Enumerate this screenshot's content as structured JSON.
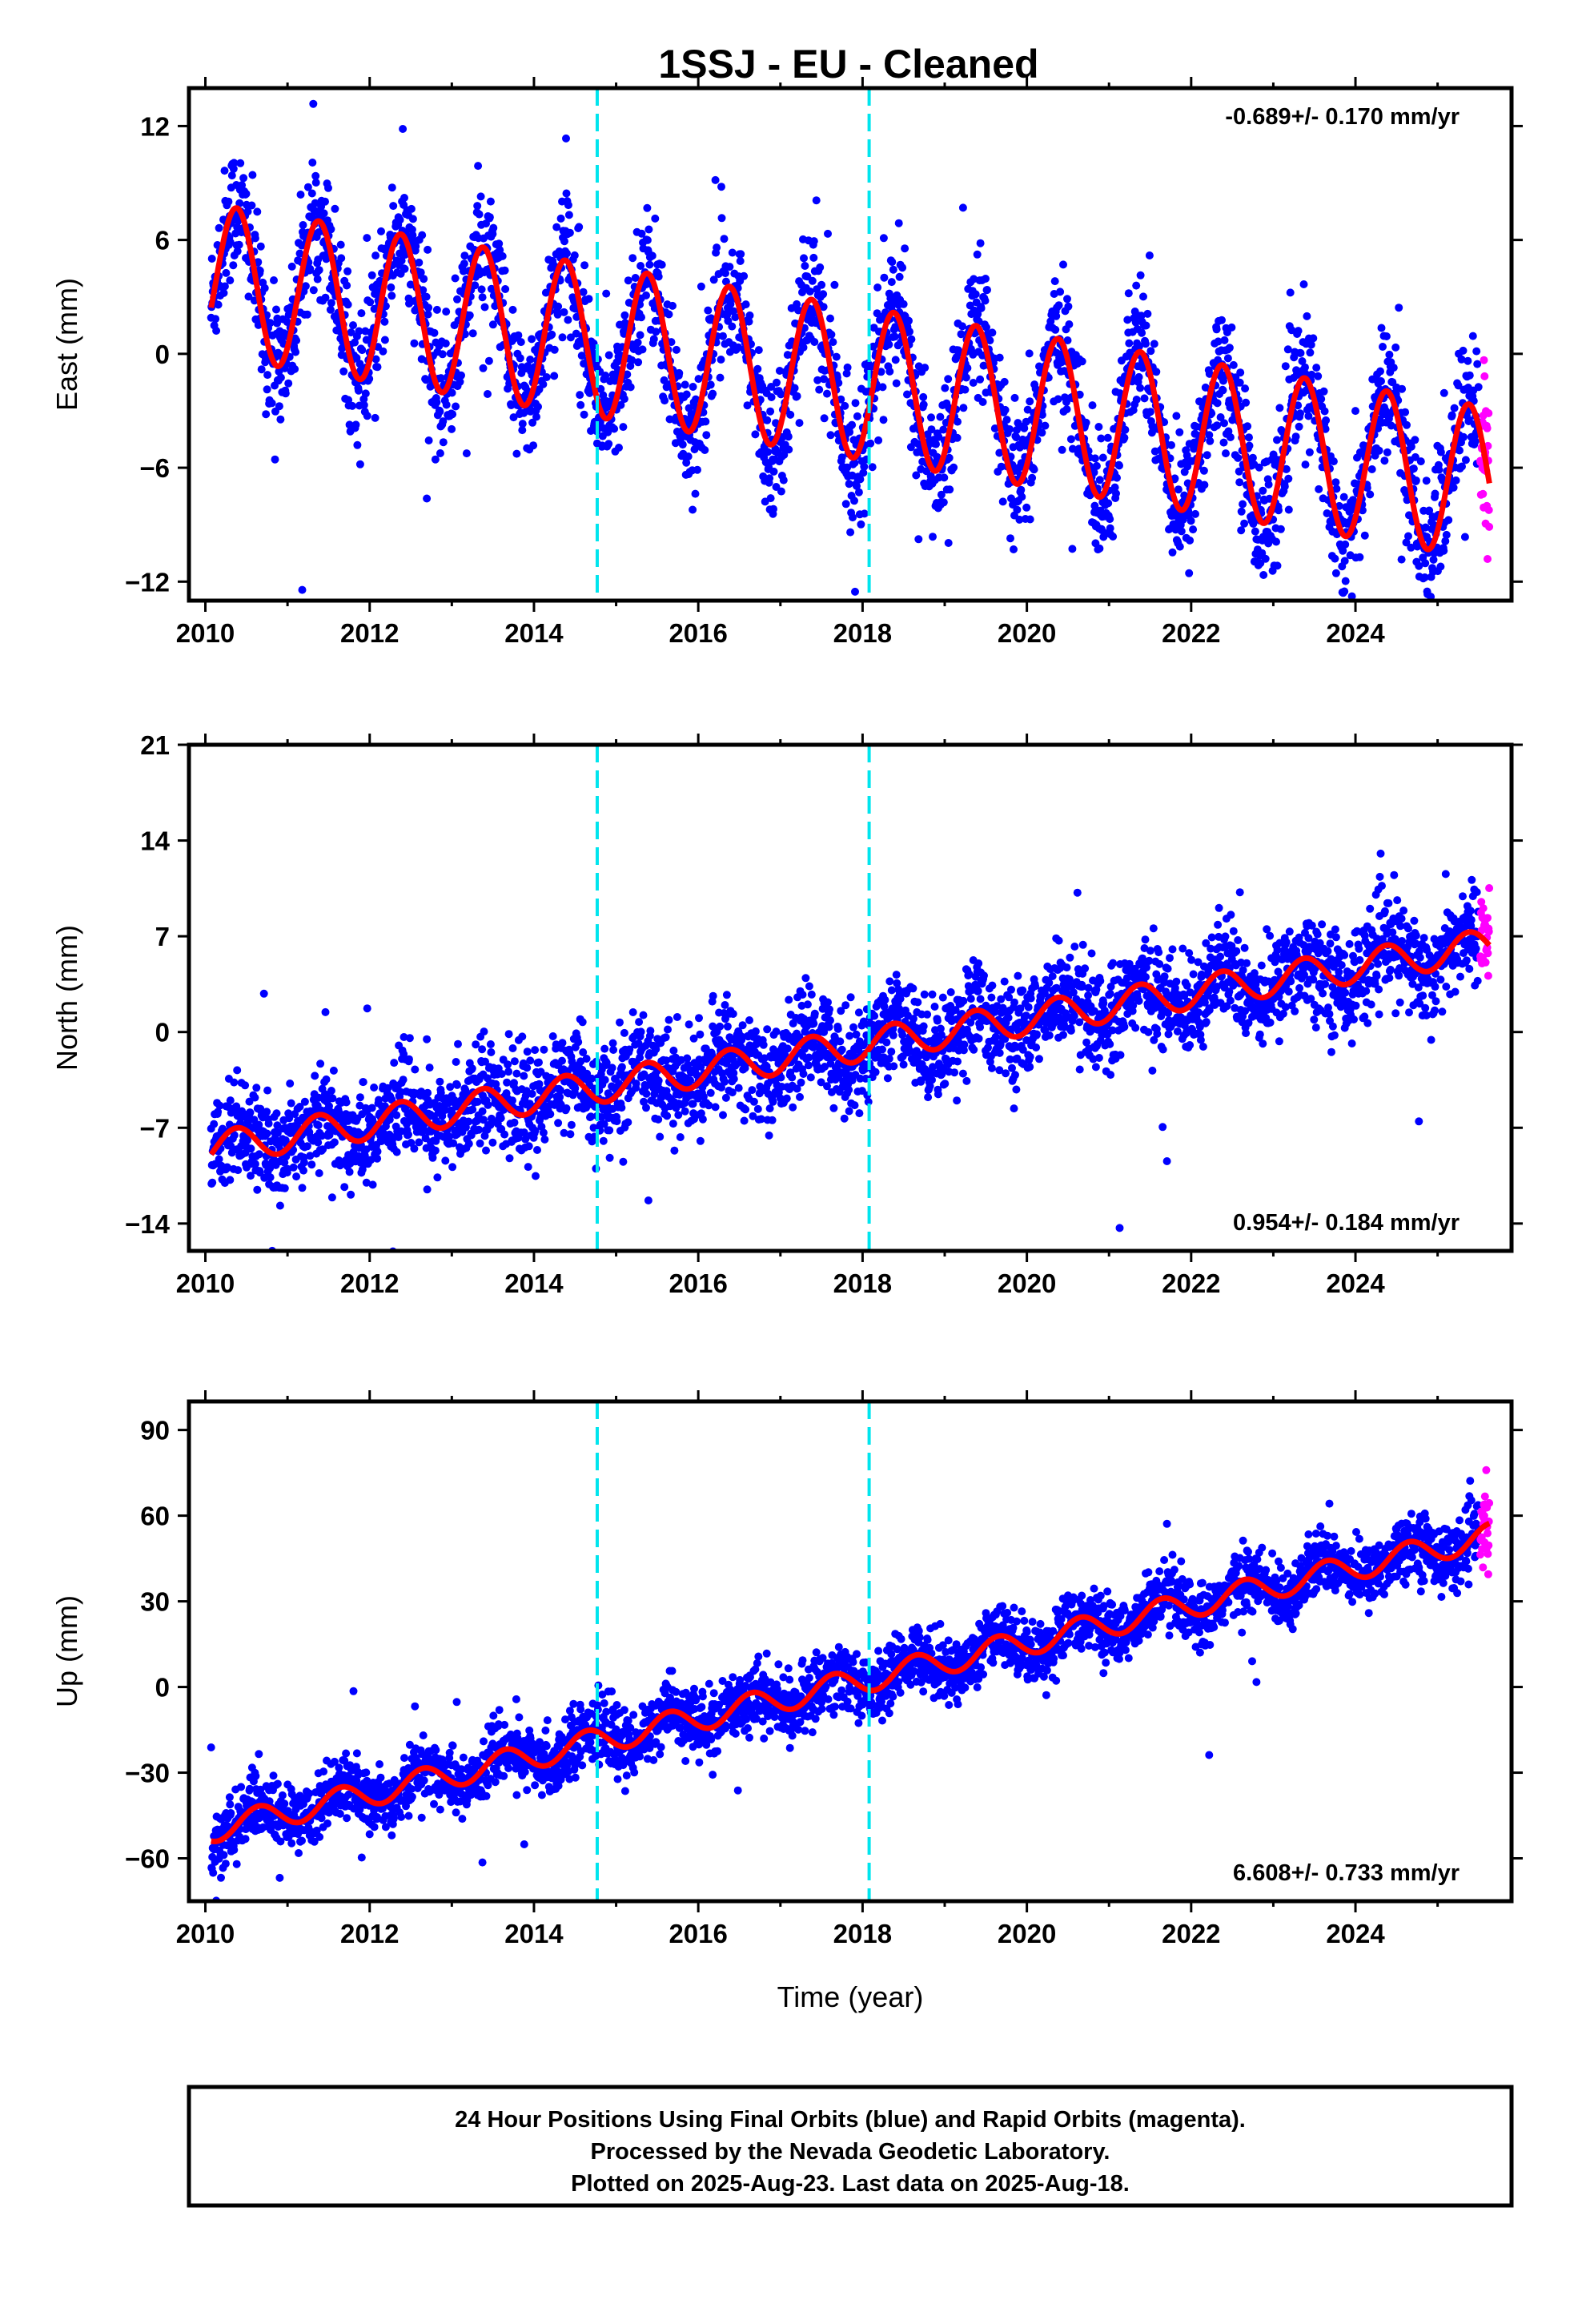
{
  "title": "1SSJ  - EU - Cleaned",
  "footer": {
    "lines": [
      "24 Hour Positions Using Final Orbits (blue) and Rapid Orbits (magenta).",
      "Processed by the Nevada Geodetic Laboratory.",
      "Plotted on 2025-Aug-23. Last data on 2025-Aug-18."
    ]
  },
  "colors": {
    "final_points": "#0000ff",
    "rapid_points": "#ff00ff",
    "model_fit": "#ff0000",
    "event_lines": "#00e5ee"
  },
  "chart_data": [
    {
      "type": "scatter",
      "component": "east",
      "ylabel": "East (mm)",
      "xlabel": "",
      "xlim": [
        2009.8,
        2025.9
      ],
      "ylim": [
        -13,
        14
      ],
      "xticks": [
        2010,
        2012,
        2014,
        2016,
        2018,
        2020,
        2022,
        2024
      ],
      "yticks": [
        -12,
        -6,
        0,
        6,
        12
      ],
      "ytick_labels": [
        "−12",
        "−6",
        "0",
        "6",
        "12"
      ],
      "event_lines_x": [
        2014.77,
        2018.08
      ],
      "rate_label": "-0.689+/- 0.170 mm/yr",
      "rate_position": "top-right",
      "model": {
        "start_year": 2010.07,
        "offset_at_start": 3.9,
        "trend_mm_per_yr": -0.689,
        "annual_amplitude": 4.0,
        "peak_phase": 0.38
      },
      "data_span": [
        2010.07,
        2025.5
      ],
      "rapid_span": [
        2025.52,
        2025.63
      ],
      "noise_mm": 1.7
    },
    {
      "type": "scatter",
      "component": "north",
      "ylabel": "North (mm)",
      "xlabel": "",
      "xlim": [
        2009.8,
        2025.9
      ],
      "ylim": [
        -16,
        21
      ],
      "xticks": [
        2010,
        2012,
        2014,
        2016,
        2018,
        2020,
        2022,
        2024
      ],
      "yticks": [
        -14,
        -7,
        0,
        7,
        14,
        21
      ],
      "ytick_labels": [
        "−14",
        "−7",
        "0",
        "7",
        "14",
        "21"
      ],
      "event_lines_x": [
        2014.77,
        2018.08
      ],
      "rate_label": "0.954+/- 0.184 mm/yr",
      "rate_position": "bottom-right",
      "model": {
        "start_year": 2010.07,
        "offset_at_start": -8.5,
        "trend_mm_per_yr": 0.954,
        "annual_amplitude": 1.2,
        "peak_phase": 0.38
      },
      "data_span": [
        2010.07,
        2025.5
      ],
      "rapid_span": [
        2025.52,
        2025.63
      ],
      "noise_mm": 1.8
    },
    {
      "type": "scatter",
      "component": "up",
      "ylabel": "Up (mm)",
      "xlabel": "Time (year)",
      "xlim": [
        2009.8,
        2025.9
      ],
      "ylim": [
        -75,
        100
      ],
      "xticks": [
        2010,
        2012,
        2014,
        2016,
        2018,
        2020,
        2022,
        2024
      ],
      "yticks": [
        -60,
        -30,
        0,
        30,
        60,
        90
      ],
      "ytick_labels": [
        "−60",
        "−30",
        "0",
        "30",
        "60",
        "90"
      ],
      "event_lines_x": [
        2014.77,
        2018.08
      ],
      "rate_label": "6.608+/- 0.733 mm/yr",
      "rate_position": "bottom-right",
      "model": {
        "start_year": 2010.07,
        "offset_at_start": -50,
        "trend_mm_per_yr": 6.608,
        "annual_amplitude": 4.5,
        "peak_phase": 0.65
      },
      "data_span": [
        2010.07,
        2025.5
      ],
      "rapid_span": [
        2025.52,
        2025.63
      ],
      "noise_mm": 5.5
    }
  ]
}
